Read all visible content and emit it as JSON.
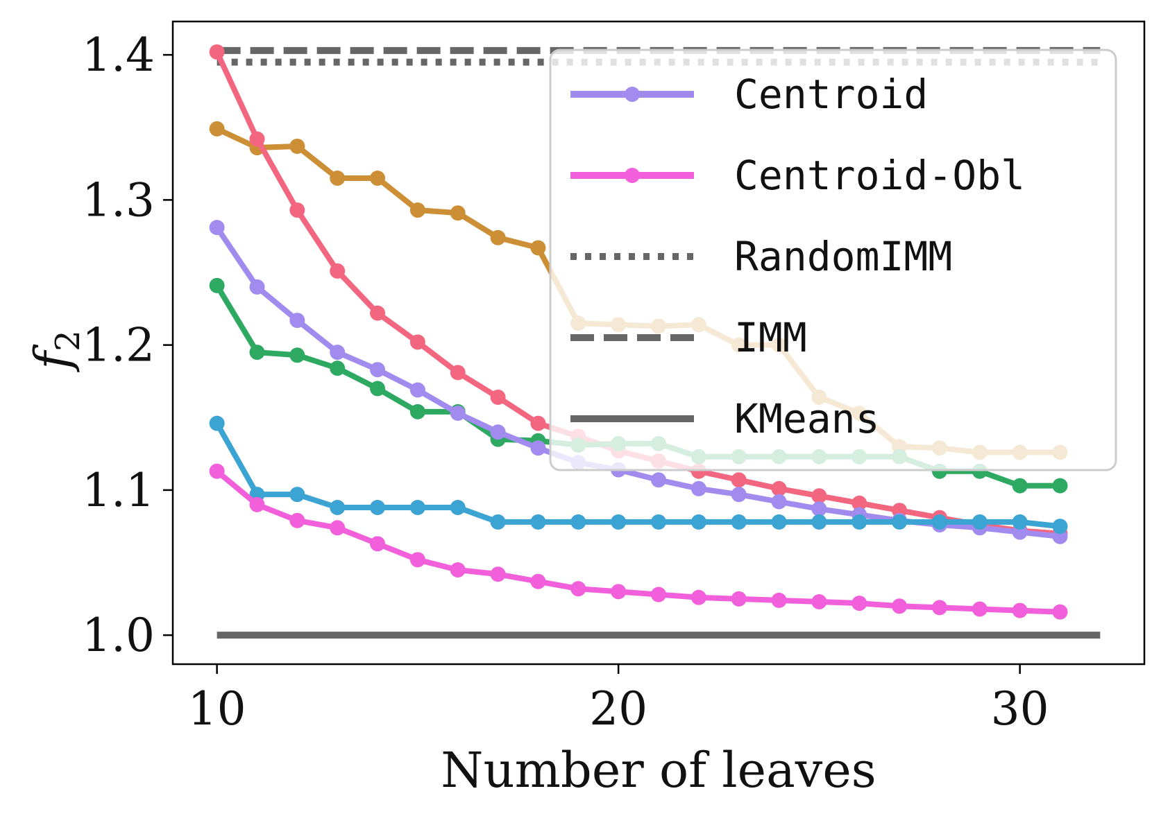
{
  "chart_data": {
    "type": "line",
    "title": "",
    "xlabel": "Number of leaves",
    "ylabel": "f",
    "ylabel_subscript": "2",
    "xlim": [
      8.9,
      33.1
    ],
    "ylim": [
      0.98,
      1.423
    ],
    "xticks": [
      10,
      20,
      30
    ],
    "xtick_labels": [
      "10",
      "20",
      "30"
    ],
    "yticks": [
      1.0,
      1.1,
      1.2,
      1.3,
      1.4
    ],
    "ytick_labels": [
      "1.0",
      "1.1",
      "1.2",
      "1.3",
      "1.4"
    ],
    "grid": false,
    "legend_position": "top-right",
    "x": [
      10,
      11,
      12,
      13,
      14,
      15,
      16,
      17,
      18,
      19,
      20,
      21,
      22,
      23,
      24,
      25,
      26,
      27,
      28,
      29,
      30,
      31
    ],
    "series": [
      {
        "name": "",
        "color": "#cc8f36",
        "style": "solid-marker",
        "in_legend": false,
        "values": [
          1.349,
          1.336,
          1.337,
          1.315,
          1.315,
          1.293,
          1.291,
          1.274,
          1.267,
          1.215,
          1.214,
          1.213,
          1.214,
          1.2,
          1.2,
          1.164,
          1.153,
          1.13,
          1.129,
          1.126,
          1.126,
          1.126
        ]
      },
      {
        "name": "",
        "color": "#f3667f",
        "style": "solid-marker",
        "in_legend": false,
        "values": [
          1.402,
          1.342,
          1.293,
          1.251,
          1.222,
          1.202,
          1.181,
          1.164,
          1.146,
          1.137,
          1.127,
          1.12,
          1.113,
          1.107,
          1.101,
          1.096,
          1.091,
          1.086,
          1.081,
          1.076,
          1.072,
          1.07
        ]
      },
      {
        "name": "",
        "color": "#2ea962",
        "style": "solid-marker",
        "in_legend": false,
        "values": [
          1.241,
          1.195,
          1.193,
          1.184,
          1.17,
          1.154,
          1.154,
          1.135,
          1.134,
          1.131,
          1.132,
          1.132,
          1.123,
          1.123,
          1.123,
          1.123,
          1.123,
          1.123,
          1.113,
          1.113,
          1.103,
          1.103
        ]
      },
      {
        "name": "Centroid",
        "color": "#a28bef",
        "style": "solid-marker",
        "in_legend": true,
        "values": [
          1.281,
          1.24,
          1.217,
          1.195,
          1.183,
          1.169,
          1.153,
          1.14,
          1.129,
          1.119,
          1.114,
          1.107,
          1.101,
          1.097,
          1.092,
          1.087,
          1.083,
          1.079,
          1.076,
          1.074,
          1.071,
          1.068
        ]
      },
      {
        "name": "",
        "color": "#3ba4d2",
        "style": "solid-marker",
        "in_legend": false,
        "values": [
          1.146,
          1.097,
          1.097,
          1.088,
          1.088,
          1.088,
          1.088,
          1.078,
          1.078,
          1.078,
          1.078,
          1.078,
          1.078,
          1.078,
          1.078,
          1.078,
          1.078,
          1.078,
          1.078,
          1.078,
          1.078,
          1.075
        ]
      },
      {
        "name": "Centroid-Obl",
        "color": "#f25fdb",
        "style": "solid-marker",
        "in_legend": true,
        "values": [
          1.113,
          1.09,
          1.079,
          1.074,
          1.063,
          1.052,
          1.045,
          1.042,
          1.037,
          1.032,
          1.03,
          1.028,
          1.026,
          1.025,
          1.024,
          1.023,
          1.022,
          1.02,
          1.019,
          1.018,
          1.017,
          1.016
        ]
      }
    ],
    "reference_lines": [
      {
        "name": "RandomIMM",
        "value": 1.395,
        "color": "#666666",
        "dash": "dotted",
        "x_range": [
          10,
          32
        ]
      },
      {
        "name": "IMM",
        "value": 1.403,
        "color": "#666666",
        "dash": "dashed",
        "x_range": [
          10,
          32
        ]
      },
      {
        "name": "KMeans",
        "value": 1.0,
        "color": "#666666",
        "dash": "solid",
        "x_range": [
          10,
          32
        ]
      }
    ],
    "legend": [
      {
        "label": "Centroid",
        "color": "#a28bef",
        "style": "solid-marker"
      },
      {
        "label": "Centroid-Obl",
        "color": "#f25fdb",
        "style": "solid-marker"
      },
      {
        "label": "RandomIMM",
        "color": "#666666",
        "style": "dotted"
      },
      {
        "label": "IMM",
        "color": "#666666",
        "style": "dashed"
      },
      {
        "label": "KMeans",
        "color": "#666666",
        "style": "solid"
      }
    ]
  }
}
